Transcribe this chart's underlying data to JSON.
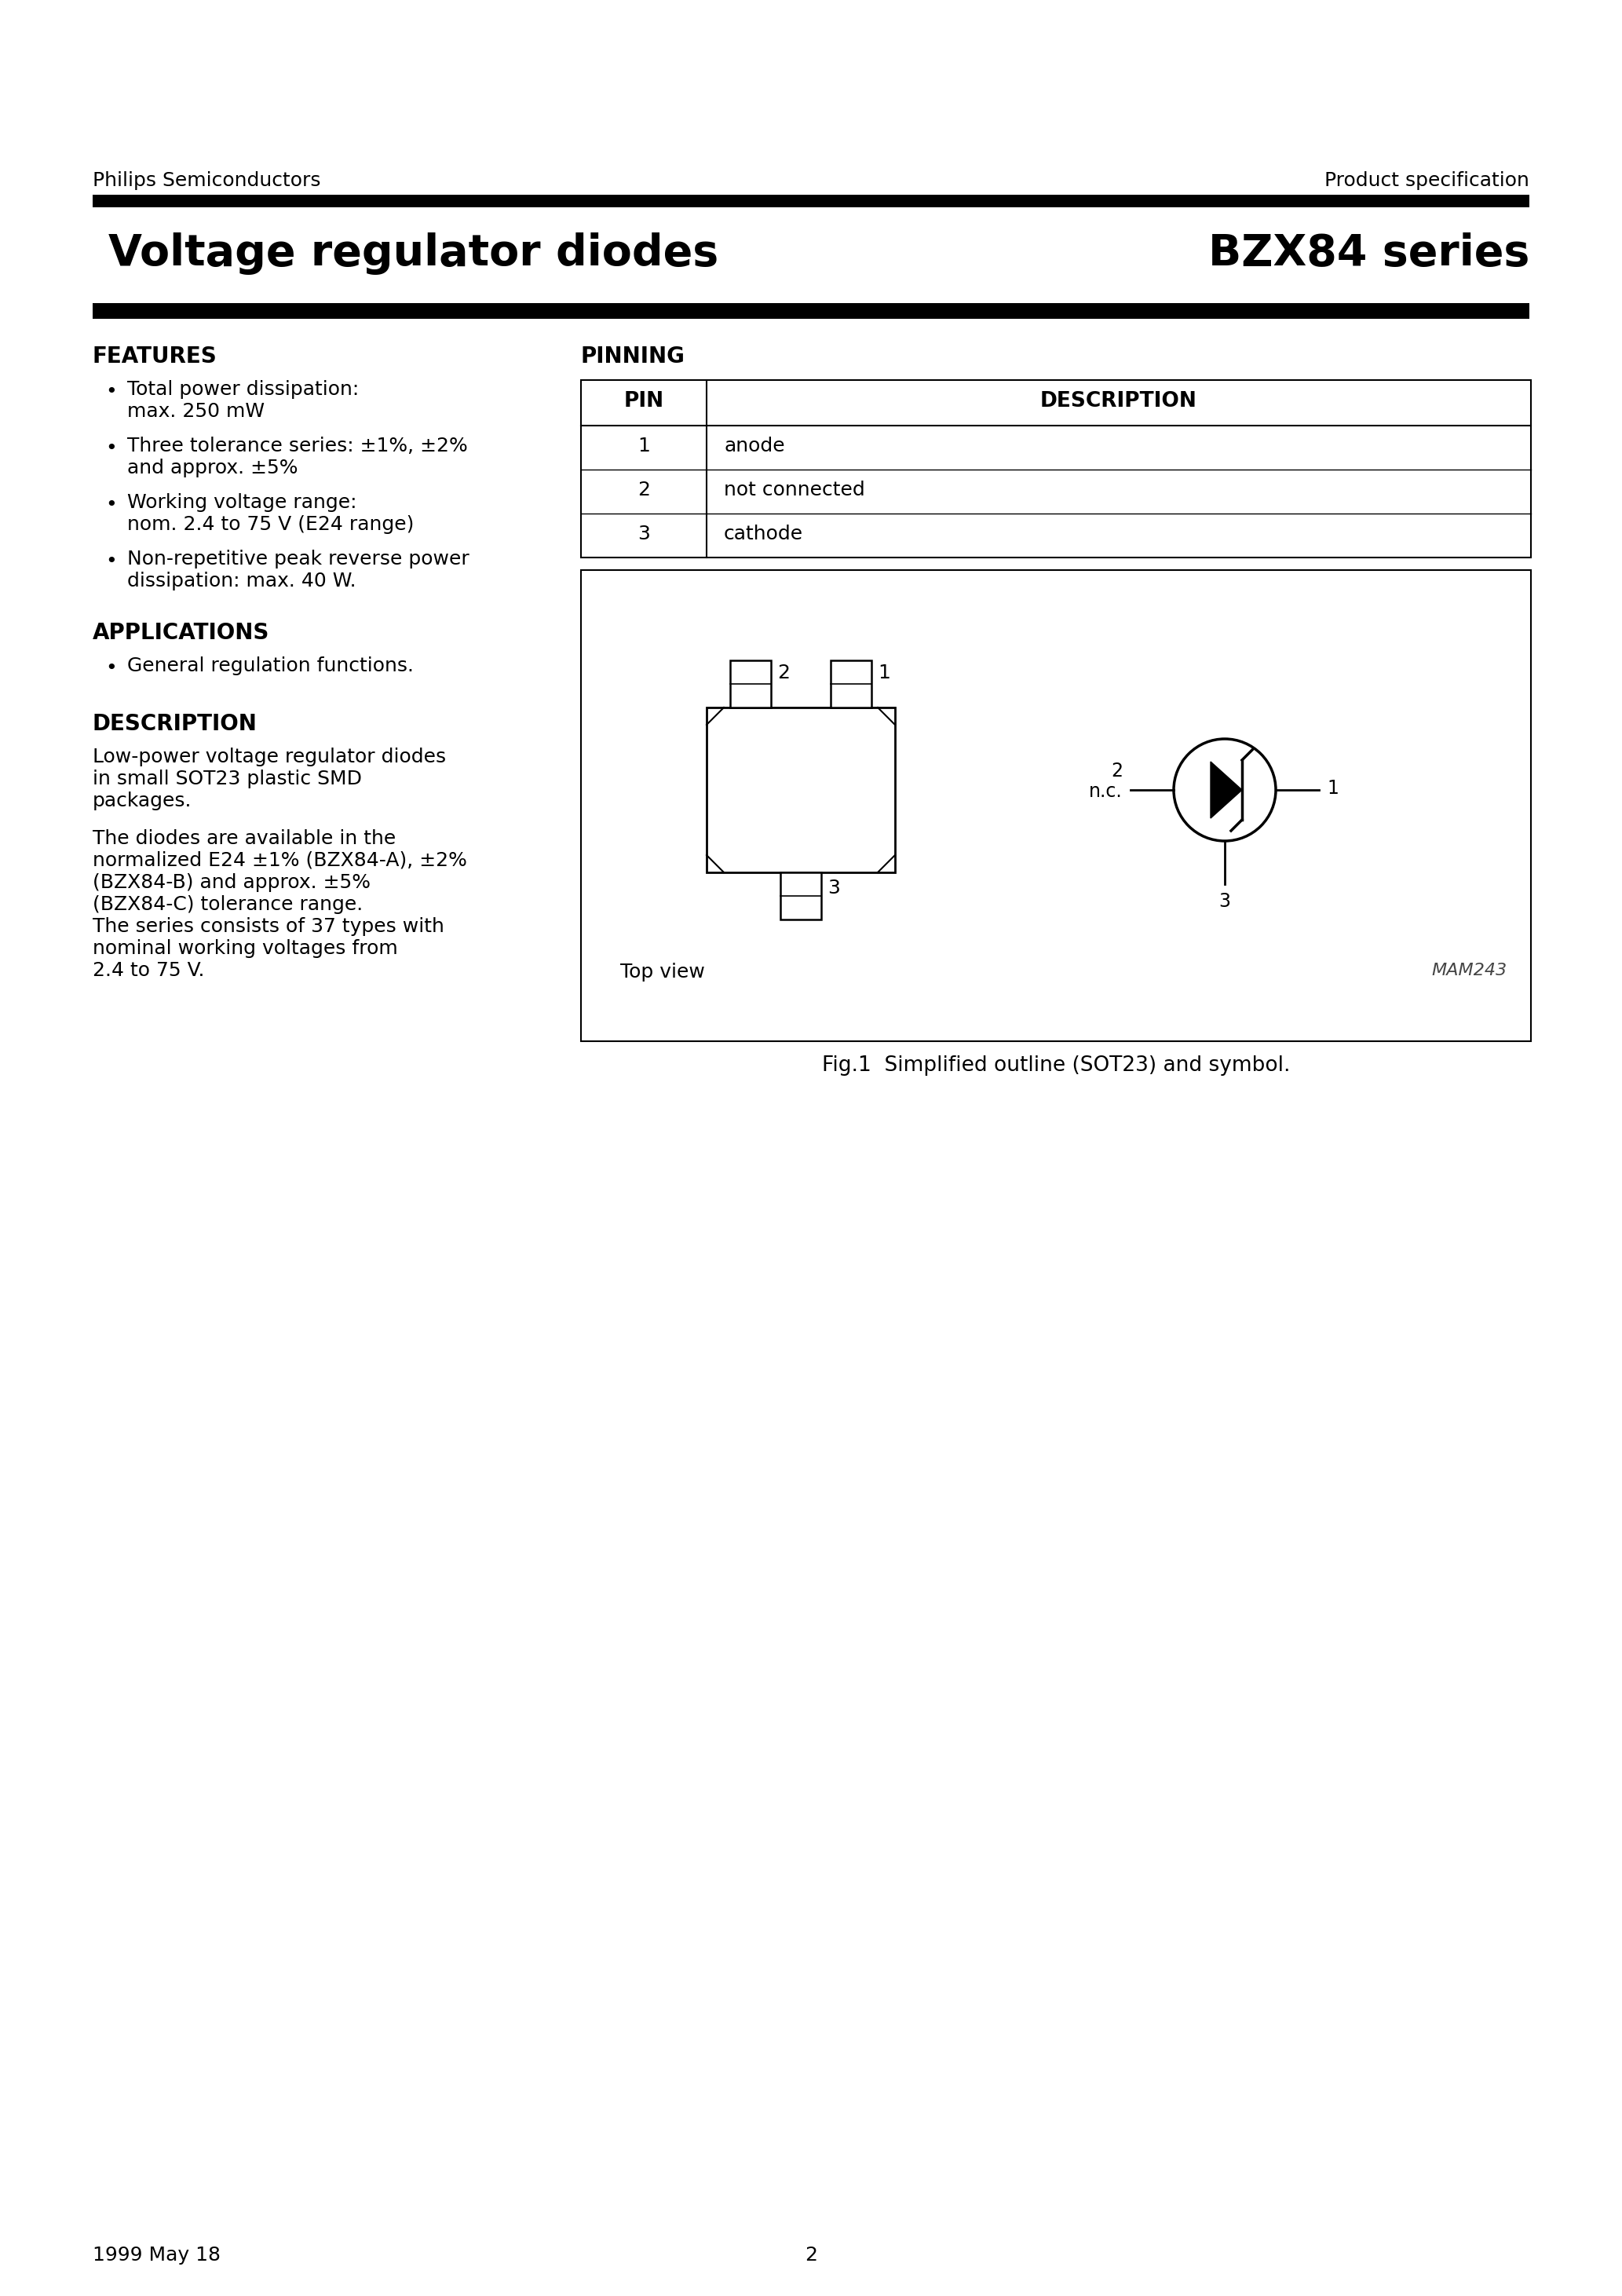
{
  "page_title_left": "Voltage regulator diodes",
  "page_title_right": "BZX84 series",
  "header_left": "Philips Semiconductors",
  "header_right": "Product specification",
  "footer_left": "1999 May 18",
  "footer_center": "2",
  "features_title": "FEATURES",
  "features_items": [
    [
      "Total power dissipation:",
      "max. 250 mW"
    ],
    [
      "Three tolerance series: ±1%, ±2%",
      "and approx. ±5%"
    ],
    [
      "Working voltage range:",
      "nom. 2.4 to 75 V (E24 range)"
    ],
    [
      "Non-repetitive peak reverse power",
      "dissipation: max. 40 W."
    ]
  ],
  "applications_title": "APPLICATIONS",
  "applications_items": [
    "General regulation functions."
  ],
  "description_title": "DESCRIPTION",
  "description_para1": [
    "Low-power voltage regulator diodes",
    "in small SOT23 plastic SMD",
    "packages."
  ],
  "description_para2": [
    "The diodes are available in the",
    "normalized E24 ±1% (BZX84-A), ±2%",
    "(BZX84-B) and approx. ±5%",
    "(BZX84-C) tolerance range.",
    "The series consists of 37 types with",
    "nominal working voltages from",
    "2.4 to 75 V."
  ],
  "pinning_title": "PINNING",
  "pin_headers": [
    "PIN",
    "DESCRIPTION"
  ],
  "pin_data": [
    [
      "1",
      "anode"
    ],
    [
      "2",
      "not connected"
    ],
    [
      "3",
      "cathode"
    ]
  ],
  "fig_caption": "Fig.1  Simplified outline (SOT23) and symbol.",
  "fig_label": "MAM243",
  "top_view_label": "Top view",
  "bg_color": "#ffffff",
  "text_color": "#000000",
  "bar_color": "#000000"
}
